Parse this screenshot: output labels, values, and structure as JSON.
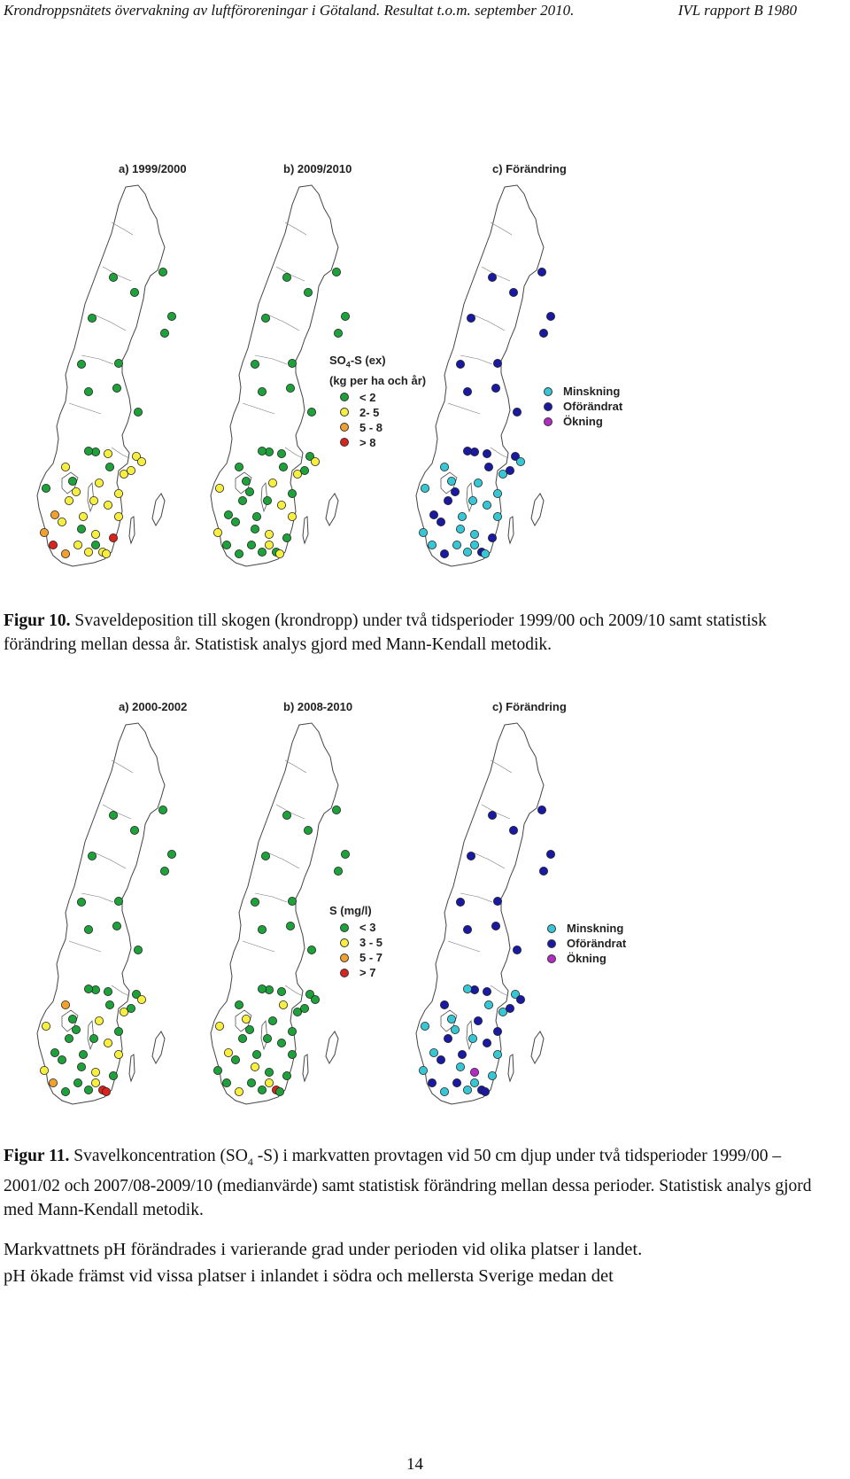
{
  "header": {
    "left": "Krondroppsnätets övervakning av luftföroreningar i Götaland. Resultat t.o.m. september 2010.",
    "right": "IVL rapport B 1980"
  },
  "figure10": {
    "panels": [
      {
        "title": "a) 1999/2000"
      },
      {
        "title": "b) 2009/2010"
      },
      {
        "title": "c) Förändring"
      }
    ],
    "legend_so4": {
      "title_main": "SO",
      "title_sub": "4",
      "title_rest": "-S (ex)",
      "title_line2": "(kg per ha och år)",
      "items": [
        {
          "label": "< 2",
          "color": "#1ea03a"
        },
        {
          "label": "2- 5",
          "color": "#f6ee40"
        },
        {
          "label": "5 - 8",
          "color": "#f0a030"
        },
        {
          "label": "> 8",
          "color": "#d8241f"
        }
      ]
    },
    "legend_change": {
      "items": [
        {
          "label": "Minskning",
          "color": "#39c6d4"
        },
        {
          "label": "Oförändrat",
          "color": "#1a1aa0"
        },
        {
          "label": "Ökning",
          "color": "#b22bc2"
        }
      ]
    },
    "caption_label": "Figur 10.",
    "caption_text": "Svaveldeposition till skogen (krondropp) under två tidsperioder 1999/00 och 2009/10 samt statistisk förändring mellan dessa år. Statistisk analys gjord med Mann-Kendall metodik."
  },
  "figure11": {
    "panels": [
      {
        "title": "a) 2000-2002"
      },
      {
        "title": "b) 2008-2010"
      },
      {
        "title": "c) Förändring"
      }
    ],
    "legend_s": {
      "title": "S (mg/l)",
      "items": [
        {
          "label": "< 3",
          "color": "#1ea03a"
        },
        {
          "label": "3 - 5",
          "color": "#f6ee40"
        },
        {
          "label": "5 - 7",
          "color": "#f0a030"
        },
        {
          "label": "> 7",
          "color": "#d8241f"
        }
      ]
    },
    "legend_change": {
      "items": [
        {
          "label": "Minskning",
          "color": "#39c6d4"
        },
        {
          "label": "Oförändrat",
          "color": "#1a1aa0"
        },
        {
          "label": "Ökning",
          "color": "#b22bc2"
        }
      ]
    },
    "caption_label": "Figur 11.",
    "caption_part1": "Svavelkoncentration (SO",
    "caption_sub": "4",
    "caption_part2": " -S) i markvatten provtagen vid 50 cm djup under två tidsperioder 1999/00 – 2001/02 och 2007/08-2009/10 (medianvärde) samt statistisk förändring mellan dessa perioder. Statistisk analys gjord med Mann-Kendall metodik."
  },
  "body": {
    "line1": "Markvattnets pH förändrades i varierande grad under perioden vid olika platser i landet.",
    "line2": "pH ökade främst vid vissa platser i inlandet i södra och mellersta Sverige medan det"
  },
  "page_number": "14",
  "colors": {
    "green": "#1ea03a",
    "yellow": "#f6ee40",
    "orange": "#f0a030",
    "red": "#d8241f",
    "cyan": "#39c6d4",
    "navy": "#1a1aa0",
    "purple": "#b22bc2"
  }
}
